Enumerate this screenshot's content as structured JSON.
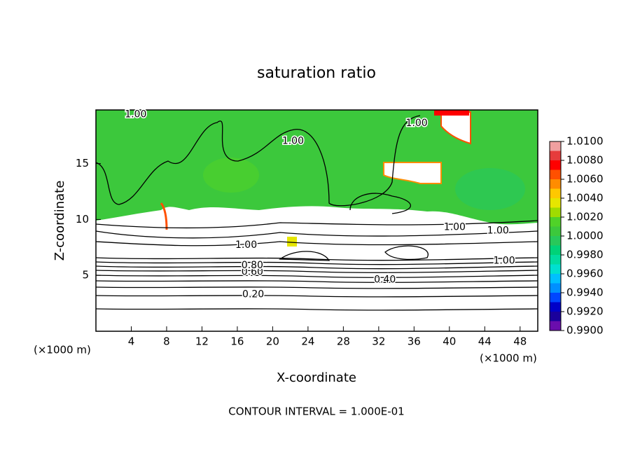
{
  "chart_data": {
    "type": "contour",
    "title": "saturation ratio",
    "xlabel": "X-coordinate",
    "ylabel": "Z-coordinate",
    "x_unit_label": "(×1000 m)",
    "footer": "CONTOUR INTERVAL = 1.000E-01",
    "xlim": [
      0,
      50
    ],
    "xticks": [
      4,
      8,
      12,
      16,
      20,
      24,
      28,
      32,
      36,
      40,
      44,
      48
    ],
    "ylim": [
      0,
      19.8
    ],
    "yticks": [
      5,
      10,
      15
    ],
    "colorbar": {
      "levels": [
        0.99,
        0.991,
        0.992,
        0.993,
        0.994,
        0.995,
        0.996,
        0.997,
        0.998,
        0.999,
        1.0,
        1.001,
        1.002,
        1.003,
        1.004,
        1.005,
        1.006,
        1.007,
        1.008,
        1.009,
        1.01
      ],
      "colors": [
        "#6a0dad",
        "#1a009c",
        "#0000c8",
        "#0046ff",
        "#0090ff",
        "#00c0ff",
        "#00e0d0",
        "#00dca0",
        "#00d278",
        "#28c85a",
        "#3cc83c",
        "#50d228",
        "#a0dc00",
        "#e6e600",
        "#ffc800",
        "#ff8c00",
        "#ff5000",
        "#ff0000",
        "#e63c3c",
        "#f0a0a0"
      ],
      "ticks": [
        {
          "value": 0.99,
          "label": "0.9900"
        },
        {
          "value": 0.992,
          "label": "0.9920"
        },
        {
          "value": 0.994,
          "label": "0.9940"
        },
        {
          "value": 0.996,
          "label": "0.9960"
        },
        {
          "value": 0.998,
          "label": "0.9980"
        },
        {
          "value": 1.0,
          "label": "1.0000"
        },
        {
          "value": 1.002,
          "label": "1.0020"
        },
        {
          "value": 1.004,
          "label": "1.0040"
        },
        {
          "value": 1.006,
          "label": "1.0060"
        },
        {
          "value": 1.008,
          "label": "1.0080"
        },
        {
          "value": 1.01,
          "label": "1.0100"
        }
      ]
    },
    "contour_labels": [
      {
        "text": "1.00",
        "x": 4.5,
        "y": 19.4
      },
      {
        "text": "1.00",
        "x": 22.3,
        "y": 17.0
      },
      {
        "text": "1.00",
        "x": 36.3,
        "y": 18.6
      },
      {
        "text": "1.00",
        "x": 40.6,
        "y": 9.3
      },
      {
        "text": "1.00",
        "x": 45.5,
        "y": 9.0
      },
      {
        "text": "1.00",
        "x": 46.2,
        "y": 6.3
      },
      {
        "text": "1.00",
        "x": 17.0,
        "y": 7.7
      },
      {
        "text": "0.20",
        "x": 17.8,
        "y": 3.3
      },
      {
        "text": "0.40",
        "x": 32.7,
        "y": 4.6
      },
      {
        "text": "0.60",
        "x": 17.7,
        "y": 5.3
      },
      {
        "text": "0.80",
        "x": 17.7,
        "y": 5.9
      }
    ]
  }
}
